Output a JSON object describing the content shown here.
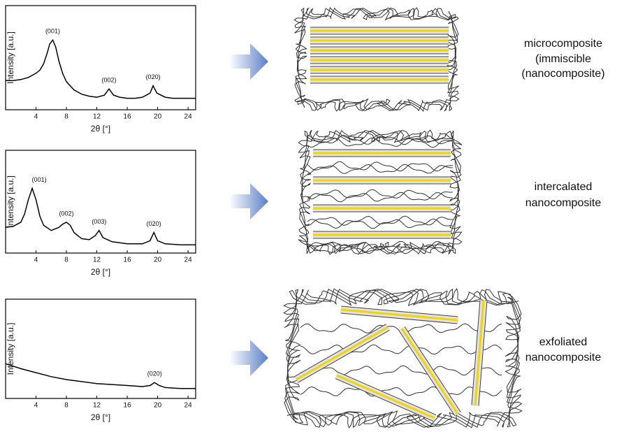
{
  "chart_data": [
    {
      "type": "line",
      "x_label": "2θ [°]",
      "y_label": "Intensity [a.u.]",
      "color": "#000000",
      "xlim": [
        0,
        25
      ],
      "ylim": [
        0,
        100
      ],
      "xticks": [
        4,
        8,
        12,
        16,
        20,
        24
      ],
      "x": [
        0,
        1,
        2,
        3,
        4,
        4.5,
        5,
        5.5,
        5.8,
        6.2,
        6.6,
        7,
        7.5,
        8,
        9,
        10,
        11,
        12,
        13,
        13.6,
        14.2,
        15,
        16,
        17,
        18,
        19,
        19.4,
        19.9,
        21,
        22,
        23,
        24,
        25
      ],
      "values": [
        28,
        28,
        29,
        31,
        35,
        38,
        44,
        55,
        63,
        67,
        60,
        47,
        35,
        27,
        19,
        15,
        13,
        12,
        14,
        20,
        14,
        12,
        11,
        11,
        12,
        16,
        23,
        16,
        12,
        11,
        11,
        11,
        11
      ],
      "annotations": [
        {
          "text": "(001)",
          "x": 6.2
        },
        {
          "text": "(002)",
          "x": 13.6
        },
        {
          "text": "(020)",
          "x": 19.4
        }
      ]
    },
    {
      "type": "line",
      "x_label": "2θ [°]",
      "y_label": "Intensity [a.u.]",
      "color": "#000000",
      "xlim": [
        0,
        25
      ],
      "ylim": [
        0,
        100
      ],
      "xticks": [
        4,
        8,
        12,
        16,
        20,
        24
      ],
      "x": [
        0,
        1,
        2,
        2.5,
        3,
        3.5,
        4,
        4.5,
        5,
        6,
        7,
        7.5,
        8,
        8.5,
        9,
        10,
        11,
        11.8,
        12.3,
        12.8,
        14,
        16,
        18,
        19,
        19.5,
        20,
        21,
        23,
        25
      ],
      "values": [
        25,
        26,
        30,
        38,
        52,
        63,
        52,
        36,
        27,
        22,
        25,
        28,
        30,
        27,
        20,
        14,
        13,
        17,
        22,
        15,
        11,
        9,
        9,
        12,
        20,
        12,
        9,
        8,
        8
      ],
      "annotations": [
        {
          "text": "(001)",
          "x": 3.5
        },
        {
          "text": "(002)",
          "x": 8
        },
        {
          "text": "(003)",
          "x": 12.3
        },
        {
          "text": "(020)",
          "x": 19.5
        }
      ]
    },
    {
      "type": "line",
      "x_label": "2θ [°]",
      "y_label": "Intensity [a.u.]",
      "color": "#000000",
      "xlim": [
        0,
        25
      ],
      "ylim": [
        0,
        100
      ],
      "xticks": [
        4,
        8,
        12,
        16,
        20,
        24
      ],
      "x": [
        0,
        2,
        4,
        6,
        8,
        10,
        12,
        14,
        16,
        18,
        19,
        19.6,
        20.2,
        21,
        23,
        25
      ],
      "values": [
        35,
        30,
        26,
        22,
        19,
        17,
        15,
        14,
        13,
        12,
        13,
        16,
        13,
        11,
        10,
        10
      ],
      "annotations": [
        {
          "text": "(020)",
          "x": 19.6
        }
      ]
    }
  ],
  "labels": [
    [
      "microcomposite",
      "(immiscible",
      "(nanocomposite)"
    ],
    [
      "intercalated",
      "nanocomposite"
    ],
    [
      "exfoliated",
      "nanocomposite"
    ]
  ]
}
